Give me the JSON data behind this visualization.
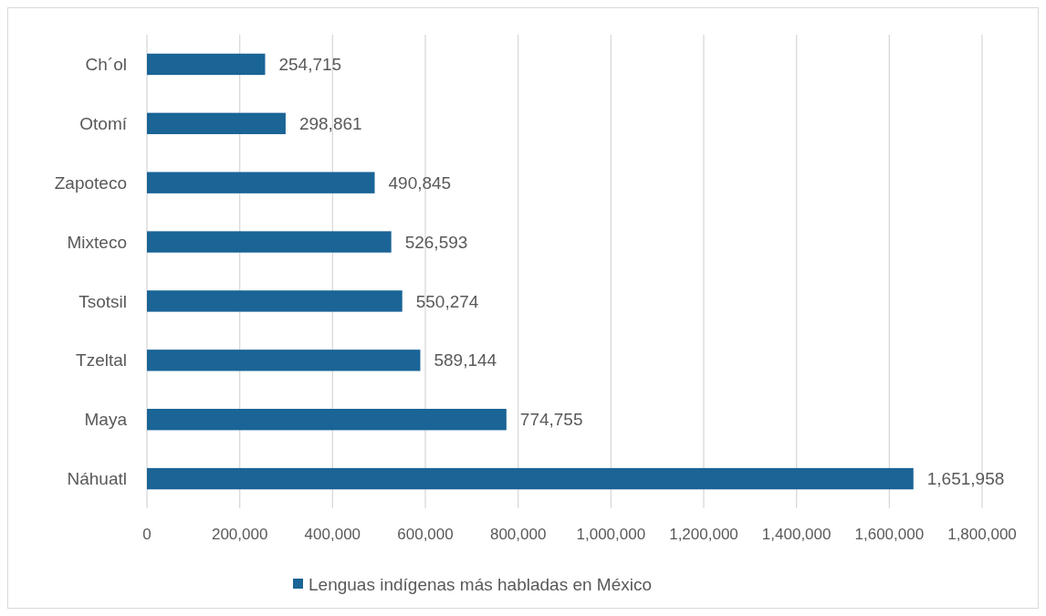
{
  "chart_data": {
    "type": "bar",
    "orientation": "horizontal",
    "categories": [
      "Ch´ol",
      "Otomí",
      "Zapoteco",
      "Mixteco",
      "Tsotsil",
      "Tzeltal",
      "Maya",
      "Náhuatl"
    ],
    "series": [
      {
        "name": "Lenguas indígenas más habladas en México",
        "color": "#1a6496",
        "values": [
          254715,
          298861,
          490845,
          526593,
          550274,
          589144,
          774755,
          1651958
        ],
        "value_labels": [
          "254,715",
          "298,861",
          "490,845",
          "526,593",
          "550,274",
          "589,144",
          "774,755",
          "1,651,958"
        ]
      }
    ],
    "xlim": [
      0,
      1800000
    ],
    "xticks": [
      {
        "value": 0,
        "label": "0"
      },
      {
        "value": 200000,
        "label": "200,000"
      },
      {
        "value": 400000,
        "label": "400,000"
      },
      {
        "value": 600000,
        "label": "600,000"
      },
      {
        "value": 800000,
        "label": "800,000"
      },
      {
        "value": 1000000,
        "label": "1,000,000"
      },
      {
        "value": 1200000,
        "label": "1,200,000"
      },
      {
        "value": 1400000,
        "label": "1,400,000"
      },
      {
        "value": 1600000,
        "label": "1,600,000"
      },
      {
        "value": 1800000,
        "label": "1,800,000"
      }
    ],
    "grid": "x",
    "legend": "bottom"
  }
}
